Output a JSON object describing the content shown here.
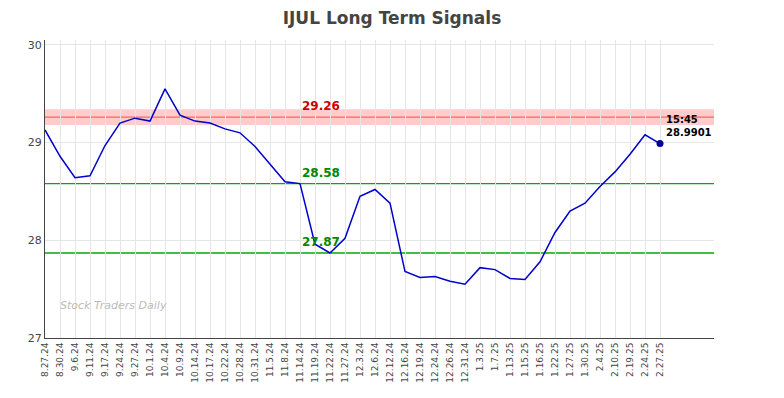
{
  "chart_data": {
    "type": "line",
    "title": "IJUL Long Term Signals",
    "categories": [
      "8.27.24",
      "8.30.24",
      "9.6.24",
      "9.11.24",
      "9.17.24",
      "9.24.24",
      "9.27.24",
      "10.1.24",
      "10.4.24",
      "10.9.24",
      "10.14.24",
      "10.17.24",
      "10.22.24",
      "10.28.24",
      "10.31.24",
      "11.5.24",
      "11.8.24",
      "11.14.24",
      "11.19.24",
      "11.22.24",
      "11.27.24",
      "12.3.24",
      "12.6.24",
      "12.12.24",
      "12.16.24",
      "12.19.24",
      "12.24.24",
      "12.26.24",
      "12.31.24",
      "1.3.25",
      "1.7.25",
      "1.13.25",
      "1.15.25",
      "1.16.25",
      "1.22.25",
      "1.27.25",
      "1.30.25",
      "2.4.25",
      "2.10.25",
      "2.19.25",
      "2.24.25",
      "2.27.25"
    ],
    "values": [
      29.13,
      28.86,
      28.64,
      28.66,
      28.97,
      29.2,
      29.25,
      29.22,
      29.55,
      29.28,
      29.22,
      29.2,
      29.14,
      29.1,
      28.96,
      28.78,
      28.6,
      28.58,
      27.96,
      27.87,
      28.02,
      28.45,
      28.52,
      28.38,
      27.68,
      27.62,
      27.63,
      27.58,
      27.55,
      27.72,
      27.7,
      27.61,
      27.6,
      27.78,
      28.08,
      28.3,
      28.38,
      28.55,
      28.7,
      28.88,
      29.08,
      28.9901
    ],
    "color": "#0000cc",
    "ylim": [
      27,
      30.05
    ],
    "yticks": [
      27,
      28,
      29,
      30
    ],
    "grid": true,
    "red_line": {
      "value": 29.26,
      "color": "#ff6666",
      "band_color": "#ffcccc",
      "label_color": "#cc0000"
    },
    "green_lines": [
      {
        "value": 28.58,
        "color": "#00aa00",
        "label_color": "#008800"
      },
      {
        "value": 27.87,
        "color": "#00aa00",
        "label_color": "#008800"
      }
    ],
    "last_point": {
      "time": "15:45",
      "price": 28.9901,
      "color": "#000099"
    },
    "watermark": "Stock Traders Daily",
    "watermark_color": "#bbbbbb"
  }
}
